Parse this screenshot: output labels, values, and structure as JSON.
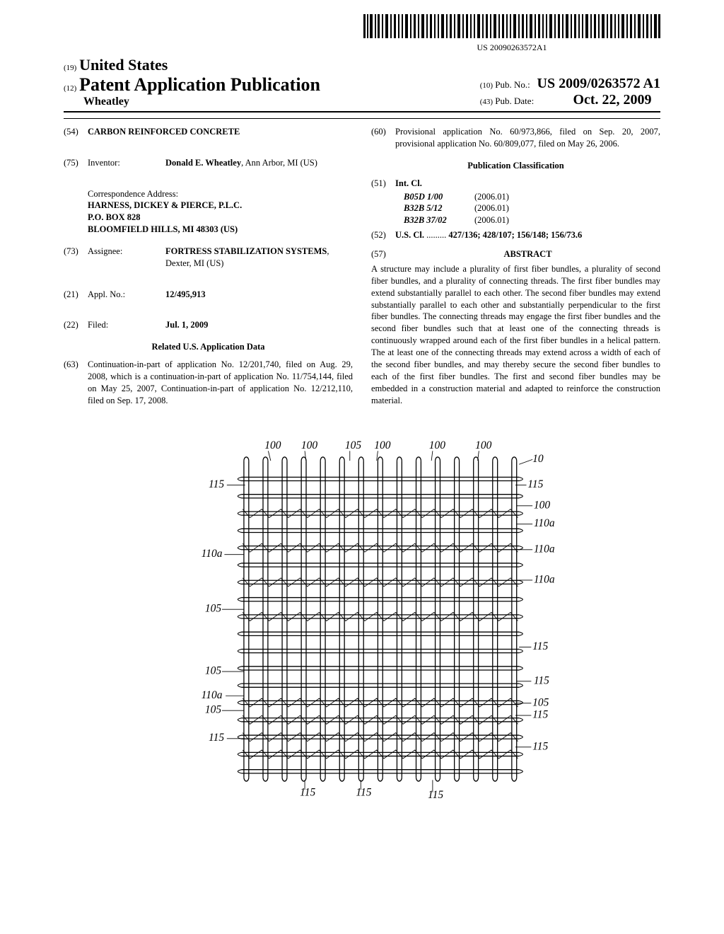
{
  "barcode": {
    "text": "US 20090263572A1"
  },
  "header": {
    "country_prefix": "(19)",
    "country": "United States",
    "kind_prefix": "(12)",
    "kind": "Patent Application Publication",
    "author": "Wheatley",
    "pubno_prefix": "(10)",
    "pubno_label": "Pub. No.:",
    "pubno": "US 2009/0263572 A1",
    "pubdate_prefix": "(43)",
    "pubdate_label": "Pub. Date:",
    "pubdate": "Oct. 22, 2009"
  },
  "left": {
    "title_num": "(54)",
    "title": "CARBON REINFORCED CONCRETE",
    "inventor_num": "(75)",
    "inventor_label": "Inventor:",
    "inventor_name": "Donald E. Wheatley",
    "inventor_loc": ", Ann Arbor, MI (US)",
    "corr_heading": "Correspondence Address:",
    "corr_line1": "HARNESS, DICKEY & PIERCE, P.L.C.",
    "corr_line2": "P.O. BOX 828",
    "corr_line3": "BLOOMFIELD HILLS, MI 48303 (US)",
    "assignee_num": "(73)",
    "assignee_label": "Assignee:",
    "assignee_name": "FORTRESS STABILIZATION SYSTEMS",
    "assignee_loc": ", Dexter, MI (US)",
    "applno_num": "(21)",
    "applno_label": "Appl. No.:",
    "applno": "12/495,913",
    "filed_num": "(22)",
    "filed_label": "Filed:",
    "filed": "Jul. 1, 2009",
    "related_heading": "Related U.S. Application Data",
    "related_num": "(63)",
    "related_text": "Continuation-in-part of application No. 12/201,740, filed on Aug. 29, 2008, which is a continuation-in-part of application No. 11/754,144, filed on May 25, 2007, Continuation-in-part of application No. 12/212,110, filed on Sep. 17, 2008."
  },
  "right": {
    "prov_num": "(60)",
    "prov_text": "Provisional application No. 60/973,866, filed on Sep. 20, 2007, provisional application No. 60/809,077, filed on May 26, 2006.",
    "pubclass_heading": "Publication Classification",
    "intcl_num": "(51)",
    "intcl_label": "Int. Cl.",
    "ipc": [
      {
        "code": "B05D 1/00",
        "year": "(2006.01)"
      },
      {
        "code": "B32B 5/12",
        "year": "(2006.01)"
      },
      {
        "code": "B32B 37/02",
        "year": "(2006.01)"
      }
    ],
    "uscl_num": "(52)",
    "uscl_label": "U.S. Cl.",
    "uscl_dots": " ......... ",
    "uscl_val": "427/136; 428/107; 156/148; 156/73.6",
    "abstract_num": "(57)",
    "abstract_label": "ABSTRACT",
    "abstract_text": "A structure may include a plurality of first fiber bundles, a plurality of second fiber bundles, and a plurality of connecting threads. The first fiber bundles may extend substantially parallel to each other. The second fiber bundles may extend substantially parallel to each other and substantially perpendicular to the first fiber bundles. The connecting threads may engage the first fiber bundles and the second fiber bundles such that at least one of the connecting threads is continuously wrapped around each of the first fiber bundles in a helical pattern. The at least one of the connecting threads may extend across a width of each of the second fiber bundles, and may thereby secure the second fiber bundles to each of the first fiber bundles. The first and second fiber bundles may be embedded in a construction material and adapted to reinforce the construction material."
  },
  "figure": {
    "labels": {
      "ref10": "10",
      "ref100": "100",
      "ref105": "105",
      "ref110a": "110a",
      "ref115": "115"
    }
  }
}
